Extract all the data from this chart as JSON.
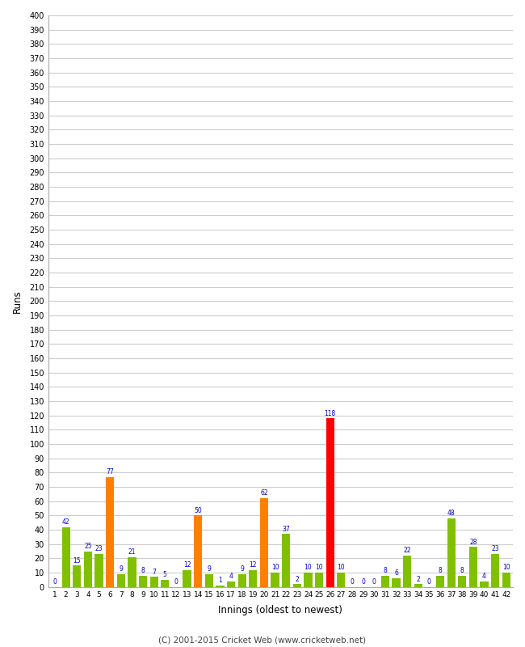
{
  "xlabel": "Innings (oldest to newest)",
  "ylabel": "Runs",
  "background_color": "#ffffff",
  "plot_bg_color": "#ffffff",
  "grid_color": "#cccccc",
  "ylim": [
    0,
    400
  ],
  "innings_labels": [
    "1",
    "2",
    "3",
    "4",
    "5",
    "6",
    "7",
    "8",
    "9",
    "10",
    "11",
    "12",
    "13",
    "14",
    "15",
    "16",
    "17",
    "18",
    "19",
    "20",
    "21",
    "22",
    "23",
    "24",
    "25",
    "26",
    "27",
    "28",
    "29",
    "30",
    "31",
    "32",
    "33",
    "34",
    "35",
    "36",
    "37",
    "38",
    "39",
    "40",
    "41",
    "42"
  ],
  "values": [
    0,
    42,
    15,
    25,
    23,
    77,
    9,
    21,
    8,
    7,
    5,
    0,
    12,
    50,
    9,
    1,
    4,
    9,
    12,
    62,
    10,
    37,
    2,
    10,
    10,
    118,
    10,
    0,
    0,
    0,
    8,
    6,
    22,
    2,
    0,
    8,
    48,
    8,
    28,
    4,
    23,
    10
  ],
  "colors": [
    "#80c000",
    "#80c000",
    "#80c000",
    "#80c000",
    "#80c000",
    "#ff8000",
    "#80c000",
    "#80c000",
    "#80c000",
    "#80c000",
    "#80c000",
    "#80c000",
    "#80c000",
    "#ff8000",
    "#80c000",
    "#80c000",
    "#80c000",
    "#80c000",
    "#80c000",
    "#ff8000",
    "#80c000",
    "#80c000",
    "#80c000",
    "#80c000",
    "#80c000",
    "#ff0000",
    "#80c000",
    "#80c000",
    "#80c000",
    "#80c000",
    "#80c000",
    "#80c000",
    "#80c000",
    "#80c000",
    "#80c000",
    "#80c000",
    "#80c000",
    "#80c000",
    "#80c000",
    "#80c000",
    "#80c000",
    "#80c000"
  ],
  "label_color": "#0000cc",
  "footer": "(C) 2001-2015 Cricket Web (www.cricketweb.net)",
  "footer_color": "#444444"
}
